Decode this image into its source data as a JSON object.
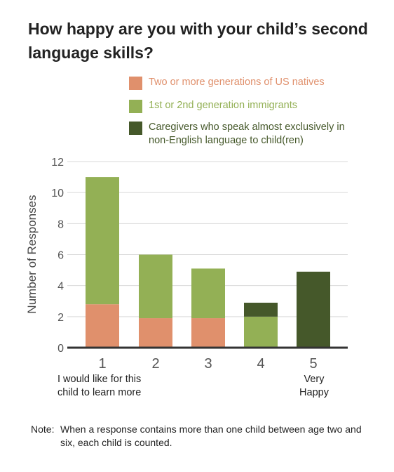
{
  "title": "How happy are you with your child’s second language skills?",
  "legend": [
    {
      "label": "Two or more generations of US natives",
      "color": "#e0906c"
    },
    {
      "label": "1st or 2nd generation immigrants",
      "color": "#93b055"
    },
    {
      "label": "Caregivers who speak almost exclusively in non-English language to child(ren)",
      "color": "#45582a"
    }
  ],
  "chart_data": {
    "type": "bar",
    "stacked": true,
    "categories": [
      "1",
      "2",
      "3",
      "4",
      "5"
    ],
    "series": [
      {
        "name": "Two or more generations of US natives",
        "values": [
          2.8,
          1.9,
          1.9,
          0,
          0
        ],
        "color": "#e0906c"
      },
      {
        "name": "1st or 2nd generation immigrants",
        "values": [
          8.2,
          4.1,
          3.2,
          2.0,
          0
        ],
        "color": "#93b055"
      },
      {
        "name": "Caregivers who speak almost exclusively in non-English language to child(ren)",
        "values": [
          0,
          0,
          0,
          0.9,
          4.9
        ],
        "color": "#45582a"
      }
    ],
    "ylabel": "Number of Responses",
    "ylim": [
      0,
      12
    ],
    "yticks": [
      "0",
      "2",
      "4",
      "6",
      "8",
      "10",
      "12"
    ],
    "grid": true,
    "legend_position": "top",
    "annotations": {
      "low": "I would like for this child to learn more",
      "high": "Very Happy"
    }
  },
  "note": {
    "label": "Note:",
    "text": "When a response contains more than one child between age two and six, each child is counted."
  }
}
